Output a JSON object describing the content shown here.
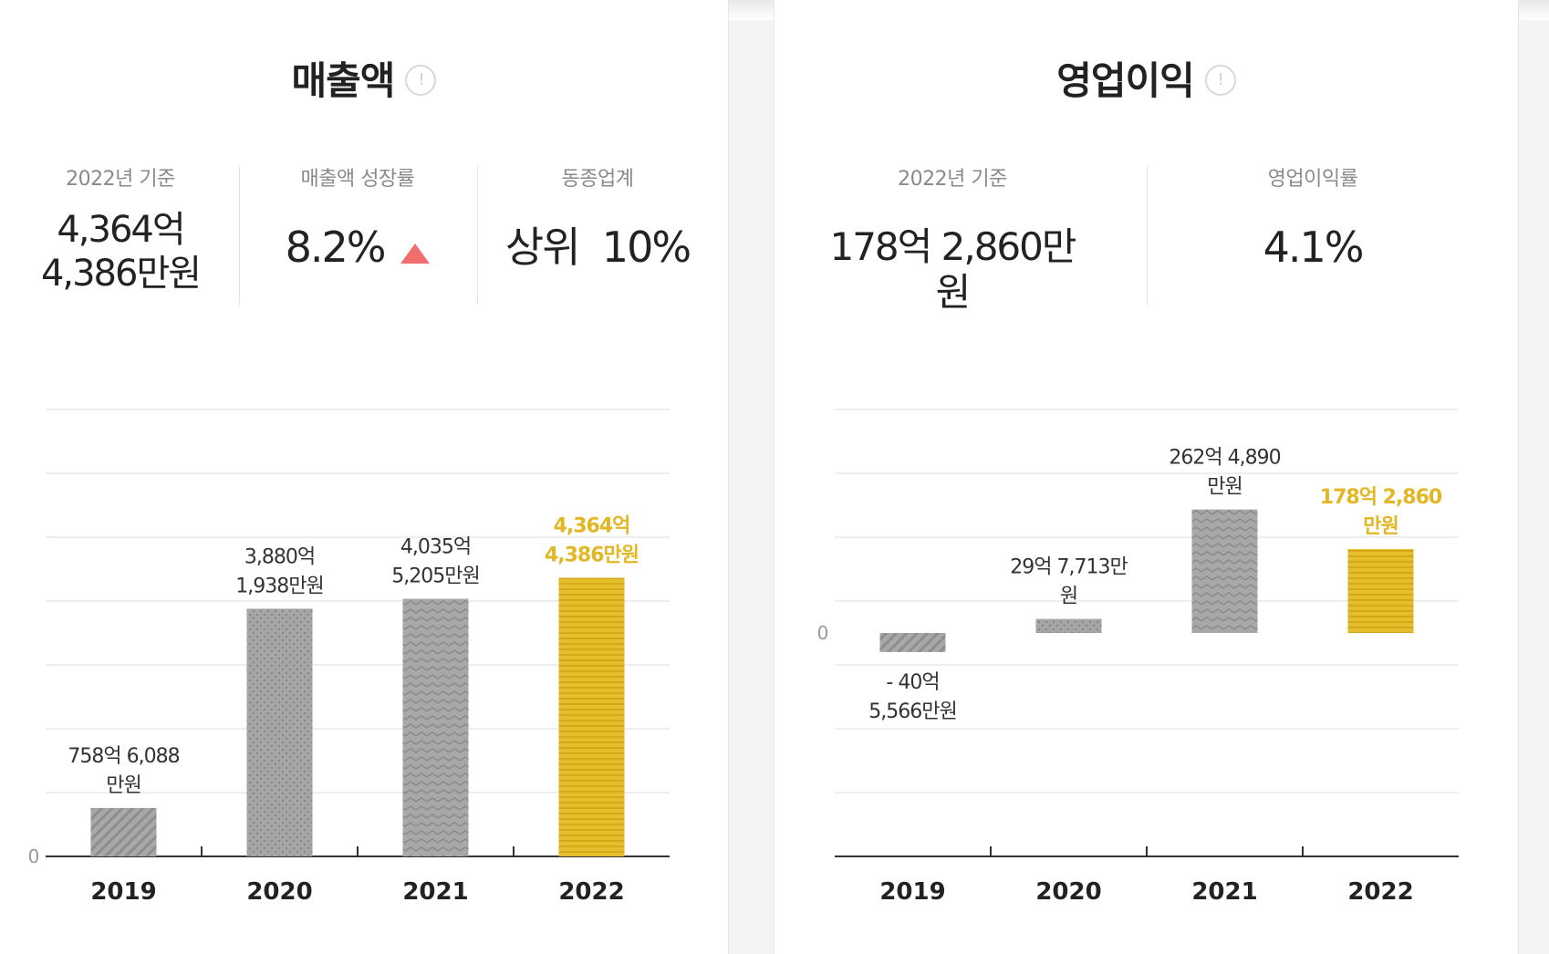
{
  "sales": {
    "title": "매출액",
    "info_icon": "!",
    "stats": [
      {
        "label": "2022년 기준",
        "value_line1": "4,364억",
        "value_line2": "4,386만원"
      },
      {
        "label": "매출액 성장률",
        "value": "8.2%",
        "trend": "up"
      },
      {
        "label": "동종업계",
        "value": "상위  10%"
      }
    ]
  },
  "operating": {
    "title": "영업이익",
    "info_icon": "!",
    "stats": [
      {
        "label": "2022년 기준",
        "value": "178억 2,860만원"
      },
      {
        "label": "영업이익률",
        "value": "4.1%"
      }
    ]
  },
  "colors": {
    "bar_gray": "#a3a3a3",
    "bar_highlight": "#e6bd2b",
    "label_highlight": "#e3b724",
    "trend_up": "#f26d6d"
  },
  "chart_data": [
    {
      "type": "bar",
      "title": "매출액",
      "unit": "억원",
      "categories": [
        "2019",
        "2020",
        "2021",
        "2022"
      ],
      "values": [
        758.6088,
        3880.1938,
        4035.5205,
        4364.4386
      ],
      "labels": [
        [
          "758억 6,088",
          "만원"
        ],
        [
          "3,880억",
          "1,938만원"
        ],
        [
          "4,035억",
          "5,205만원"
        ],
        [
          "4,364억",
          "4,386만원"
        ]
      ],
      "highlight_index": 3,
      "zero_label": "0",
      "ylim": [
        0,
        7000
      ],
      "grid": true
    },
    {
      "type": "bar",
      "title": "영업이익",
      "unit": "억원",
      "categories": [
        "2019",
        "2020",
        "2021",
        "2022"
      ],
      "values": [
        -40.5566,
        29.7713,
        262.489,
        178.286
      ],
      "labels": [
        [
          "- 40억",
          "5,566만원"
        ],
        [
          "29억 7,713만",
          "원"
        ],
        [
          "262억 4,890",
          "만원"
        ],
        [
          "178억 2,860",
          "만원"
        ]
      ],
      "highlight_index": 3,
      "zero_label": "0",
      "ylim": [
        -475,
        475
      ],
      "grid": true
    }
  ]
}
